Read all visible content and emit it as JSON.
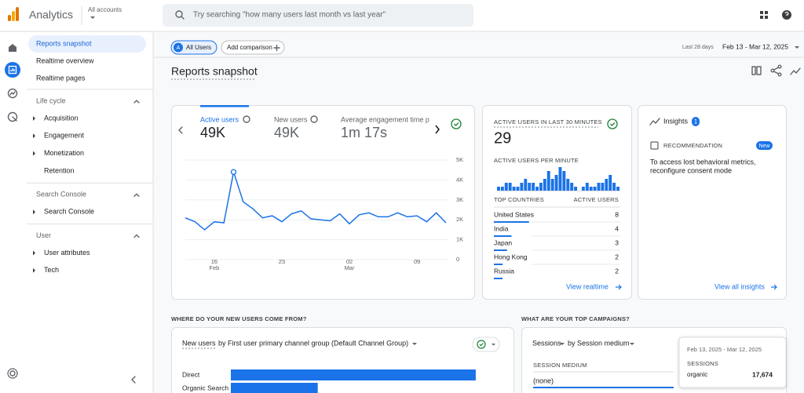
{
  "header": {
    "app_name": "Analytics",
    "account": "All accounts",
    "search_placeholder": "Try searching \"how many users last month vs last year\""
  },
  "sidebar": {
    "items": [
      "Reports snapshot",
      "Realtime overview",
      "Realtime pages"
    ],
    "sections": [
      {
        "title": "Life cycle",
        "items": [
          "Acquisition",
          "Engagement",
          "Monetization",
          "Retention"
        ]
      },
      {
        "title": "Search Console",
        "items": [
          "Search Console"
        ]
      },
      {
        "title": "User",
        "items": [
          "User attributes",
          "Tech"
        ]
      }
    ]
  },
  "toolbar": {
    "segment_badge": "A",
    "segment": "All Users",
    "add_comparison": "Add comparison",
    "date_preset": "Last 28 days",
    "date_range": "Feb 13 - Mar 12, 2025"
  },
  "page_title": "Reports snapshot",
  "overview_card": {
    "tabs": [
      {
        "label": "Active users",
        "value": "49K"
      },
      {
        "label": "New users",
        "value": "49K"
      },
      {
        "label": "Average engagement time p",
        "value": "1m 17s"
      }
    ],
    "chart": {
      "type": "line",
      "categories": [
        null,
        null,
        null,
        "16",
        null,
        null,
        null,
        null,
        null,
        null,
        "23",
        null,
        null,
        null,
        null,
        null,
        null,
        "02",
        null,
        null,
        null,
        null,
        null,
        null,
        "09",
        null,
        null,
        null
      ],
      "month_labels": [
        null,
        null,
        null,
        "Feb",
        null,
        null,
        null,
        null,
        null,
        null,
        null,
        null,
        null,
        null,
        null,
        null,
        null,
        "Mar",
        null,
        null,
        null,
        null,
        null,
        null,
        null,
        null,
        null,
        null
      ],
      "color": "#1a73e8",
      "values": [
        2100,
        1900,
        1500,
        1900,
        1850,
        4400,
        2900,
        2550,
        2100,
        2200,
        1900,
        2300,
        2450,
        2050,
        2000,
        1950,
        2300,
        1800,
        2250,
        2350,
        2150,
        2150,
        2350,
        2150,
        2200,
        1900,
        2350,
        1850
      ],
      "highlight_index": 5,
      "ylim": [
        0,
        5000
      ],
      "yticks": [
        0,
        {
          "value": 1000,
          "label": "1K"
        },
        {
          "value": 2000,
          "label": "2K"
        },
        {
          "value": 3000,
          "label": "3K"
        },
        {
          "value": 4000,
          "label": "4K"
        },
        {
          "value": 5000,
          "label": "5K"
        }
      ],
      "grid": true
    }
  },
  "realtime_card": {
    "title": "ACTIVE USERS IN LAST 30 MINUTES",
    "value": 29,
    "per_minute_label": "ACTIVE USERS PER MINUTE",
    "per_minute": {
      "type": "bar",
      "color": "#1a73e8",
      "values": [
        1,
        1,
        2,
        2,
        1,
        1,
        2,
        3,
        2,
        2,
        1,
        2,
        3,
        5,
        3,
        4,
        6,
        5,
        3,
        2,
        1,
        0,
        1,
        2,
        1,
        1,
        2,
        2,
        3,
        4,
        2,
        1
      ]
    },
    "table": {
      "headers": [
        "TOP COUNTRIES",
        "ACTIVE USERS"
      ],
      "rows": [
        [
          "United States",
          8
        ],
        [
          "India",
          4
        ],
        [
          "Japan",
          3
        ],
        [
          "Hong Kong",
          2
        ],
        [
          "Russia",
          2
        ]
      ]
    },
    "link": "View realtime"
  },
  "insights_card": {
    "title": "Insights",
    "count": 1,
    "label": "RECOMMENDATION",
    "badge": "New",
    "text_lines": [
      "To access lost behavioral metrics,",
      "reconfigure consent mode"
    ],
    "link": "View all insights"
  },
  "new_users_section": {
    "heading": "WHERE DO YOUR NEW USERS COME FROM?",
    "metric": "New users",
    "dimension_text": "by First user primary channel group (Default Channel Group)",
    "chart": {
      "type": "hbar",
      "categories": [
        "Direct",
        "Organic Search"
      ],
      "values": [
        31000,
        11000
      ],
      "color": "#1a73e8",
      "xlim": [
        0,
        32000
      ]
    }
  },
  "campaigns_section": {
    "heading": "WHAT ARE YOUR TOP CAMPAIGNS?",
    "metric": "Sessions",
    "dimension_text": "by Session medium",
    "column": "SESSION MEDIUM",
    "rows": [
      "(none)"
    ],
    "tooltip": {
      "date_range": "Feb 13, 2025 - Mar 12, 2025",
      "metric": "SESSIONS",
      "label": "organic",
      "value": 17674,
      "value_label": "17,674"
    }
  }
}
